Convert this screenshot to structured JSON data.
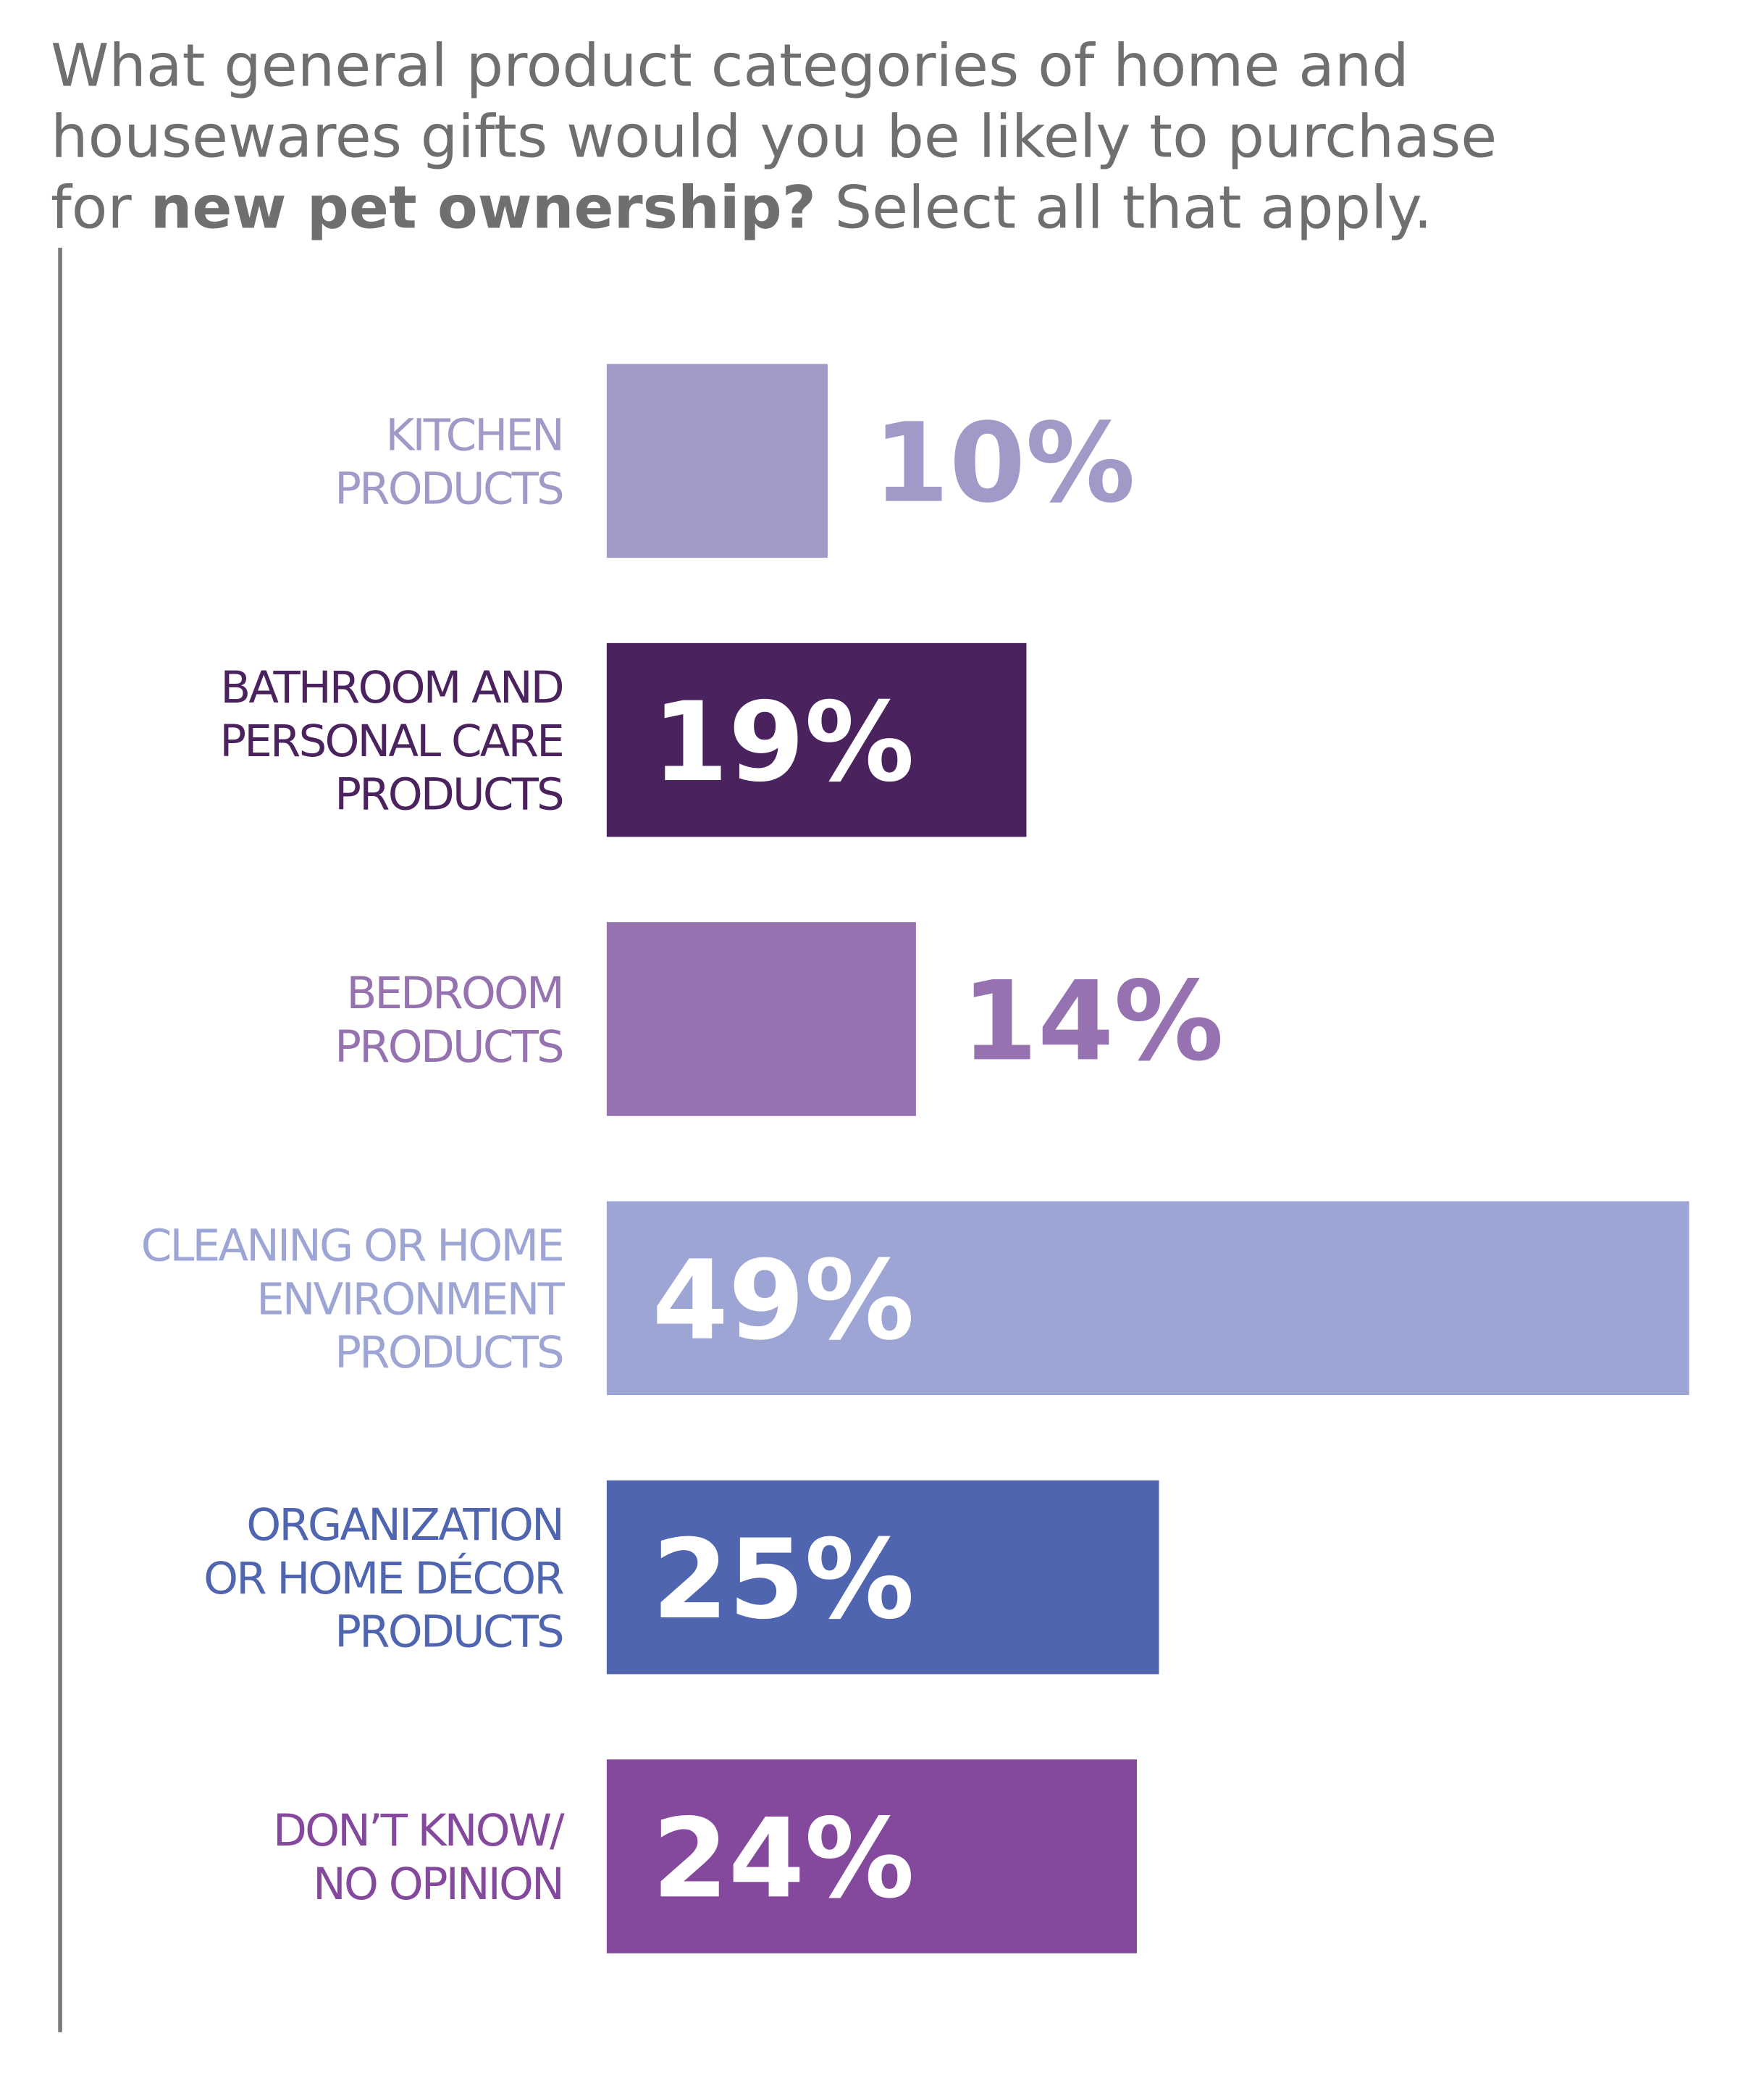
{
  "chart_data": {
    "type": "hbar",
    "title": [
      "What general product categories of home and",
      "housewares gifts would you be likely to purchase",
      "for",
      "new pet ownership?",
      "Select all that apply."
    ],
    "categories": [
      [
        "KITCHEN",
        "PRODUCTS"
      ],
      [
        "BATHROOM AND",
        "PERSONAL CARE",
        "PRODUCTS"
      ],
      [
        "BEDROOM",
        "PRODUCTS"
      ],
      [
        "CLEANING OR HOME",
        "ENVIRONMENT",
        "PRODUCTS"
      ],
      [
        "ORGANIZATION",
        "OR HOME DÉCOR",
        "PRODUCTS"
      ],
      [
        "DON’T KNOW/",
        "NO OPINION"
      ]
    ],
    "values": [
      10,
      19,
      14,
      49,
      25,
      24
    ],
    "value_labels": [
      "10%",
      "19%",
      "14%",
      "49%",
      "25%",
      "24%"
    ],
    "colors": [
      "#a09ac9",
      "#4a235e",
      "#9673b0",
      "#9da5d4",
      "#5065b0",
      "#84489c"
    ]
  }
}
